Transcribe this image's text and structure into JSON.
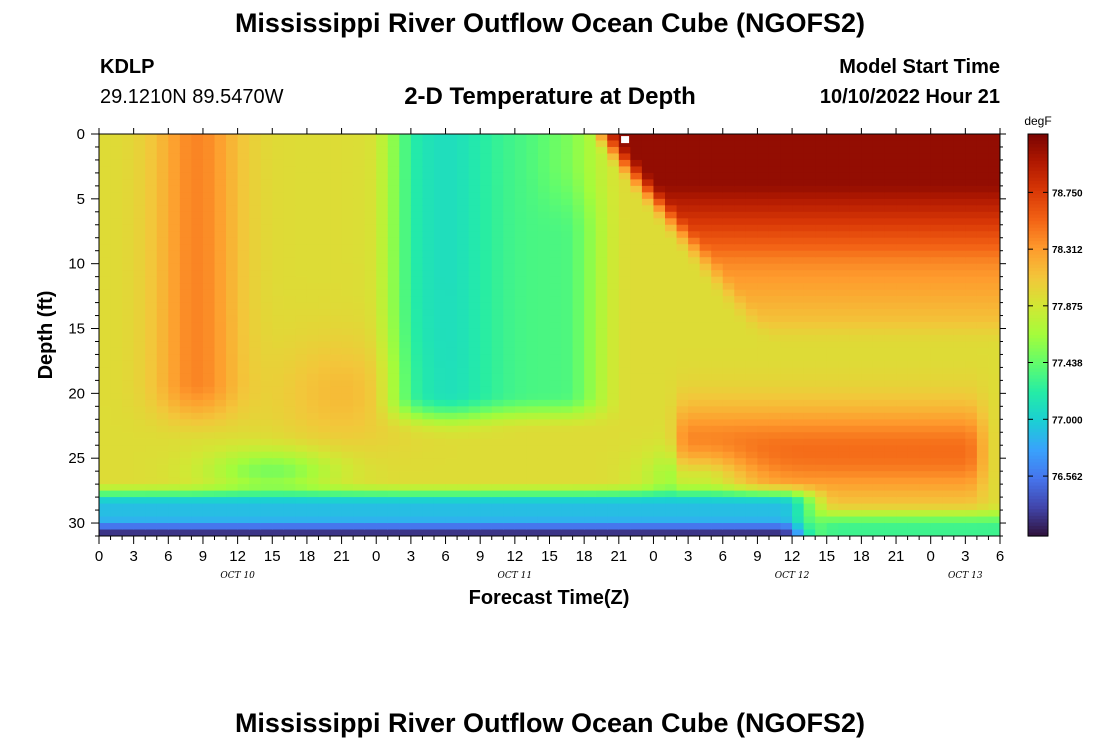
{
  "header": {
    "title": "Mississippi River Outflow Ocean Cube (NGOFS2)",
    "station_id": "KDLP",
    "station_coords": "29.1210N  89.5470W",
    "subtitle": "2-D Temperature at Depth",
    "model_label": "Model Start Time",
    "model_time": "10/10/2022 Hour 21"
  },
  "footer": {
    "title": "Mississippi River Outflow Ocean Cube (NGOFS2)"
  },
  "chart_data": {
    "type": "heatmap",
    "xlabel": "Forecast Time(Z)",
    "ylabel": "Depth (ft)",
    "x_range_hours": [
      0,
      78
    ],
    "y_range_ft": [
      0,
      31
    ],
    "y_inverted": true,
    "x_tick_values": [
      0,
      3,
      6,
      9,
      12,
      15,
      18,
      21,
      24,
      27,
      30,
      33,
      36,
      39,
      42,
      45,
      48,
      51,
      54,
      57,
      60,
      63,
      66,
      69,
      72,
      75,
      78
    ],
    "x_tick_labels": [
      "0",
      "3",
      "6",
      "9",
      "12",
      "15",
      "18",
      "21",
      "0",
      "3",
      "6",
      "9",
      "12",
      "15",
      "18",
      "21",
      "0",
      "3",
      "6",
      "9",
      "12",
      "15",
      "18",
      "21",
      "0",
      "3",
      "6"
    ],
    "y_tick_values": [
      0,
      5,
      10,
      15,
      20,
      25,
      30
    ],
    "y_tick_labels": [
      "0",
      "5",
      "10",
      "15",
      "20",
      "25",
      "30"
    ],
    "date_labels": [
      {
        "label": "OCT 10",
        "hour": 12
      },
      {
        "label": "OCT 11",
        "hour": 36
      },
      {
        "label": "OCT 12",
        "hour": 60
      },
      {
        "label": "OCT 13",
        "hour": 75
      }
    ],
    "marker": {
      "hour": 45.5,
      "depth": 0.2
    },
    "colorbar": {
      "unit": "degF",
      "range": [
        76.1,
        79.2
      ],
      "tick_values": [
        78.75,
        78.312,
        77.875,
        77.438,
        77.0,
        76.562
      ],
      "tick_labels": [
        "78.750",
        "78.312",
        "77.875",
        "77.438",
        "77.000",
        "76.562"
      ],
      "colors": [
        "#30123b",
        "#4145ab",
        "#4675ed",
        "#39a2fc",
        "#1bcfd4",
        "#24eca6",
        "#61fc6c",
        "#a4fc3b",
        "#d1e834",
        "#f3c63a",
        "#fe9b2d",
        "#f36315",
        "#d93806",
        "#b11901",
        "#7a0402"
      ]
    },
    "grid": false,
    "legend": "colorbar-right"
  }
}
